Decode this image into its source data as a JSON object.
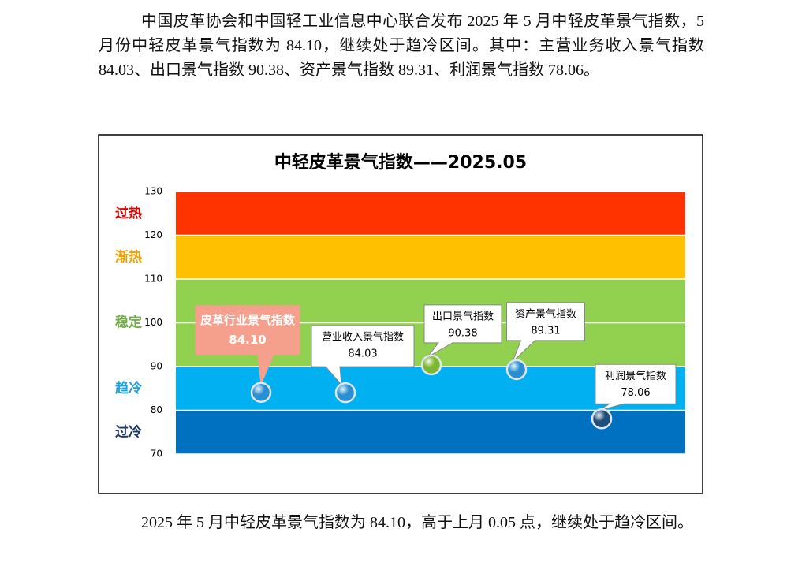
{
  "paragraphs": [
    "中国皮革协会和中国轻工业信息中心联合发布 2025 年 5 月中轻皮革景气指数，5 月份中轻皮革景气指数为 84.10，继续处于趋冷区间。其中：主营业务收入景气指数 84.03、出口景气指数 90.38、资产景气指数 89.31、利润景气指数 78.06。",
    "2025 年 5 月中轻皮革景气指数为 84.10，高于上月 0.05 点，继续处于趋冷区间。"
  ],
  "chart_data": {
    "type": "dot",
    "title": "中轻皮革景气指数——2025.05",
    "categories": [
      "皮革行业景气指数",
      "营业收入景气指数",
      "出口景气指数",
      "资产景气指数",
      "利润景气指数"
    ],
    "values": [
      84.1,
      84.03,
      90.38,
      89.31,
      78.06
    ],
    "value_labels": [
      "84.10",
      "84.03",
      "90.38",
      "89.31",
      "78.06"
    ],
    "point_colors": [
      "#2a8fd0",
      "#2a8fd0",
      "#7cb82f",
      "#2a8fd0",
      "#1f4e79"
    ],
    "ylim": [
      70,
      130
    ],
    "yticks": [
      70,
      80,
      90,
      100,
      110,
      120,
      130
    ],
    "zones": [
      {
        "name": "过热",
        "from": 120,
        "to": 130,
        "color": "#ff3300",
        "label_color": "#e00000"
      },
      {
        "name": "渐热",
        "from": 110,
        "to": 120,
        "color": "#ffc000",
        "label_color": "#f0a000"
      },
      {
        "name": "稳定",
        "from": 90,
        "to": 110,
        "color": "#92d050",
        "label_color": "#70ad47"
      },
      {
        "name": "趋冷",
        "from": 80,
        "to": 90,
        "color": "#00b0f0",
        "label_color": "#1aa3e0"
      },
      {
        "name": "过冷",
        "from": 70,
        "to": 80,
        "color": "#0070c0",
        "label_color": "#1f3864"
      }
    ]
  }
}
